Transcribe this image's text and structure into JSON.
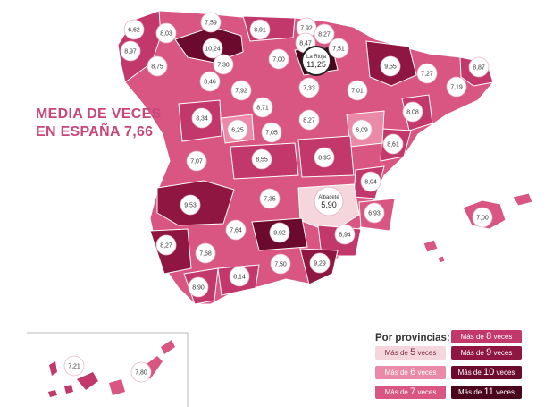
{
  "title": {
    "line1": "MEDIA DE VECES",
    "line2": "EN ESPAÑA 7,66"
  },
  "colors": {
    "mas5": "#f6d6dd",
    "mas6": "#eb89a8",
    "mas7": "#d95582",
    "mas8": "#c2386a",
    "mas9": "#8f1640",
    "mas10": "#6b0a2c",
    "mas11": "#4a051c"
  },
  "map_labels": {
    "ourense_area": "6,62",
    "coruna_lugo": "8,03",
    "asturias": "7,59",
    "leon_nw": "10,24",
    "cantabria": "8,91",
    "bizkaia": "7,92",
    "gipuzkoa": "8,27",
    "alava": "8,47",
    "navarra": "7,51",
    "pontevedra": "8,97",
    "ourense": "8,75",
    "leon": "7,30",
    "burgos": "7,00",
    "la_rioja_name": "La Rioja",
    "la_rioja": "11,25",
    "huesca": "9,55",
    "lleida": "7,27",
    "girona": "8,87",
    "barcelona": "7,19",
    "zamora": "8,46",
    "palencia": "7,92",
    "soria": "7,33",
    "zaragoza": "7,01",
    "tarragona": "8,08",
    "salamanca": "8,34",
    "valladolid": "8,71",
    "avila": "6,25",
    "segovia": "7,05",
    "guadalajara": "8,27",
    "teruel": "6,09",
    "castellon": "8,61",
    "caceres": "7,07",
    "toledo": "8,55",
    "cuenca": "8,95",
    "valencia": "8,04",
    "badajoz": "9,53",
    "ciudad_real": "7,35",
    "albacete_name": "Albacete",
    "albacete": "5,90",
    "alicante": "6,93",
    "baleares": "7,00",
    "huelva": "8,27",
    "cordoba": "7,64",
    "jaen": "9,92",
    "murcia": "8,94",
    "sevilla": "7,68",
    "granada": "7,50",
    "almeria": "9,29",
    "cadiz": "8,90",
    "malaga": "8,14",
    "las_palmas": "7,21",
    "tenerife": "7,80"
  },
  "legend": {
    "title": "Por provincias:",
    "items": [
      {
        "prefix": "Más de",
        "num": "5",
        "suffix": "veces",
        "color_key": "mas5"
      },
      {
        "prefix": "Más de",
        "num": "6",
        "suffix": "veces",
        "color_key": "mas6"
      },
      {
        "prefix": "Más de",
        "num": "7",
        "suffix": "veces",
        "color_key": "mas7"
      },
      {
        "prefix": "Más de",
        "num": "8",
        "suffix": "veces",
        "color_key": "mas8"
      },
      {
        "prefix": "Más de",
        "num": "9",
        "suffix": "veces",
        "color_key": "mas9"
      },
      {
        "prefix": "Más de",
        "num": "10",
        "suffix": "veces",
        "color_key": "mas10"
      },
      {
        "prefix": "Más de",
        "num": "11",
        "suffix": "veces",
        "color_key": "mas11"
      }
    ]
  }
}
